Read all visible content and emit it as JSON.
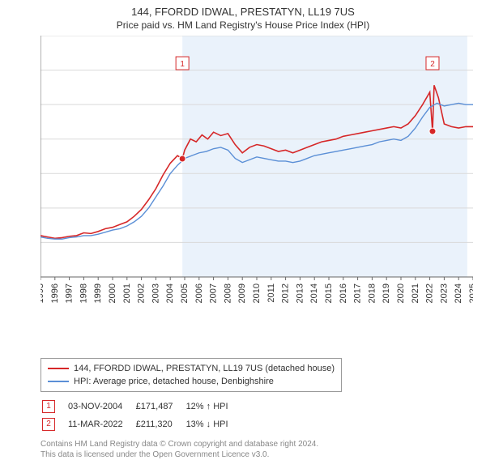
{
  "title_line1": "144, FFORDD IDWAL, PRESTATYN, LL19 7US",
  "title_line2": "Price paid vs. HM Land Registry's House Price Index (HPI)",
  "chart": {
    "type": "line",
    "background_color": "#ffffff",
    "shaded_band": {
      "x_start": 2004.84,
      "x_end": 2024.6,
      "fill": "#eaf2fb"
    },
    "grid_color": "#d9d9d9",
    "axis_color": "#666666",
    "yaxis": {
      "min": 0,
      "max": 350000,
      "tick_step": 50000,
      "format_prefix": "£",
      "format_suffix": "K",
      "divide_by": 1000
    },
    "xaxis": {
      "min": 1995,
      "max": 2025,
      "tick_step": 1,
      "label_rotation_deg": -90
    },
    "series": [
      {
        "name": "144, FFORDD IDWAL, PRESTATYN, LL19 7US (detached house)",
        "color": "#d62728",
        "width": 1.6,
        "xy": [
          [
            1995.0,
            60000
          ],
          [
            1995.5,
            58000
          ],
          [
            1996.0,
            56000
          ],
          [
            1996.5,
            57000
          ],
          [
            1997.0,
            59000
          ],
          [
            1997.5,
            60000
          ],
          [
            1998.0,
            64000
          ],
          [
            1998.5,
            63000
          ],
          [
            1999.0,
            66000
          ],
          [
            1999.5,
            70000
          ],
          [
            2000.0,
            72000
          ],
          [
            2000.5,
            76000
          ],
          [
            2001.0,
            80000
          ],
          [
            2001.5,
            88000
          ],
          [
            2002.0,
            98000
          ],
          [
            2002.5,
            112000
          ],
          [
            2003.0,
            128000
          ],
          [
            2003.5,
            148000
          ],
          [
            2004.0,
            165000
          ],
          [
            2004.5,
            176000
          ],
          [
            2004.84,
            171487
          ],
          [
            2005.0,
            184000
          ],
          [
            2005.4,
            200000
          ],
          [
            2005.8,
            196000
          ],
          [
            2006.2,
            206000
          ],
          [
            2006.6,
            200000
          ],
          [
            2007.0,
            210000
          ],
          [
            2007.5,
            205000
          ],
          [
            2008.0,
            208000
          ],
          [
            2008.5,
            192000
          ],
          [
            2009.0,
            180000
          ],
          [
            2009.5,
            188000
          ],
          [
            2010.0,
            192000
          ],
          [
            2010.5,
            190000
          ],
          [
            2011.0,
            186000
          ],
          [
            2011.5,
            182000
          ],
          [
            2012.0,
            184000
          ],
          [
            2012.5,
            180000
          ],
          [
            2013.0,
            184000
          ],
          [
            2013.5,
            188000
          ],
          [
            2014.0,
            192000
          ],
          [
            2014.5,
            196000
          ],
          [
            2015.0,
            198000
          ],
          [
            2015.5,
            200000
          ],
          [
            2016.0,
            204000
          ],
          [
            2016.5,
            206000
          ],
          [
            2017.0,
            208000
          ],
          [
            2017.5,
            210000
          ],
          [
            2018.0,
            212000
          ],
          [
            2018.5,
            214000
          ],
          [
            2019.0,
            216000
          ],
          [
            2019.5,
            218000
          ],
          [
            2020.0,
            216000
          ],
          [
            2020.5,
            222000
          ],
          [
            2021.0,
            234000
          ],
          [
            2021.5,
            250000
          ],
          [
            2022.0,
            268000
          ],
          [
            2022.19,
            211320
          ],
          [
            2022.3,
            278000
          ],
          [
            2022.6,
            260000
          ],
          [
            2023.0,
            222000
          ],
          [
            2023.5,
            218000
          ],
          [
            2024.0,
            216000
          ],
          [
            2024.5,
            218000
          ],
          [
            2025.0,
            218000
          ]
        ]
      },
      {
        "name": "HPI: Average price, detached house, Denbighshire",
        "color": "#5b8fd6",
        "width": 1.4,
        "xy": [
          [
            1995.0,
            58000
          ],
          [
            1995.5,
            56000
          ],
          [
            1996.0,
            55000
          ],
          [
            1996.5,
            55000
          ],
          [
            1997.0,
            57000
          ],
          [
            1997.5,
            58000
          ],
          [
            1998.0,
            60000
          ],
          [
            1998.5,
            60000
          ],
          [
            1999.0,
            62000
          ],
          [
            1999.5,
            65000
          ],
          [
            2000.0,
            68000
          ],
          [
            2000.5,
            70000
          ],
          [
            2001.0,
            74000
          ],
          [
            2001.5,
            80000
          ],
          [
            2002.0,
            88000
          ],
          [
            2002.5,
            100000
          ],
          [
            2003.0,
            116000
          ],
          [
            2003.5,
            132000
          ],
          [
            2004.0,
            150000
          ],
          [
            2004.5,
            162000
          ],
          [
            2005.0,
            172000
          ],
          [
            2005.5,
            176000
          ],
          [
            2006.0,
            180000
          ],
          [
            2006.5,
            182000
          ],
          [
            2007.0,
            186000
          ],
          [
            2007.5,
            188000
          ],
          [
            2008.0,
            184000
          ],
          [
            2008.5,
            172000
          ],
          [
            2009.0,
            166000
          ],
          [
            2009.5,
            170000
          ],
          [
            2010.0,
            174000
          ],
          [
            2010.5,
            172000
          ],
          [
            2011.0,
            170000
          ],
          [
            2011.5,
            168000
          ],
          [
            2012.0,
            168000
          ],
          [
            2012.5,
            166000
          ],
          [
            2013.0,
            168000
          ],
          [
            2013.5,
            172000
          ],
          [
            2014.0,
            176000
          ],
          [
            2014.5,
            178000
          ],
          [
            2015.0,
            180000
          ],
          [
            2015.5,
            182000
          ],
          [
            2016.0,
            184000
          ],
          [
            2016.5,
            186000
          ],
          [
            2017.0,
            188000
          ],
          [
            2017.5,
            190000
          ],
          [
            2018.0,
            192000
          ],
          [
            2018.5,
            196000
          ],
          [
            2019.0,
            198000
          ],
          [
            2019.5,
            200000
          ],
          [
            2020.0,
            198000
          ],
          [
            2020.5,
            204000
          ],
          [
            2021.0,
            216000
          ],
          [
            2021.5,
            232000
          ],
          [
            2022.0,
            246000
          ],
          [
            2022.5,
            252000
          ],
          [
            2023.0,
            248000
          ],
          [
            2023.5,
            250000
          ],
          [
            2024.0,
            252000
          ],
          [
            2024.5,
            250000
          ],
          [
            2025.0,
            250000
          ]
        ]
      }
    ],
    "markers": [
      {
        "id": 1,
        "label": "1",
        "x": 2004.84,
        "y": 171487,
        "color": "#d62728",
        "label_y": 310000
      },
      {
        "id": 2,
        "label": "2",
        "x": 2022.19,
        "y": 211320,
        "color": "#d62728",
        "label_y": 310000
      }
    ]
  },
  "legend": {
    "items": [
      {
        "color": "#d62728",
        "label": "144, FFORDD IDWAL, PRESTATYN, LL19 7US (detached house)"
      },
      {
        "color": "#5b8fd6",
        "label": "HPI: Average price, detached house, Denbighshire"
      }
    ]
  },
  "transactions": [
    {
      "badge": "1",
      "badge_color": "#d62728",
      "date": "03-NOV-2004",
      "price": "£171,487",
      "delta": "12% ↑ HPI"
    },
    {
      "badge": "2",
      "badge_color": "#d62728",
      "date": "11-MAR-2022",
      "price": "£211,320",
      "delta": "13% ↓ HPI"
    }
  ],
  "footnote_line1": "Contains HM Land Registry data © Crown copyright and database right 2024.",
  "footnote_line2": "This data is licensed under the Open Government Licence v3.0."
}
